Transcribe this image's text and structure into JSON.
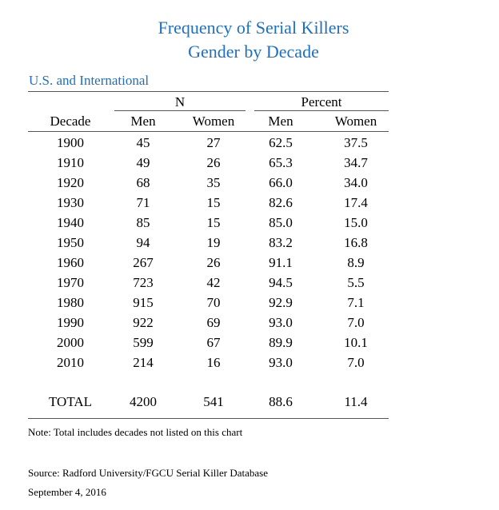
{
  "title_line1": "Frequency of Serial Killers",
  "title_line2": "Gender by Decade",
  "subtitle": "U.S. and International",
  "group_headers": {
    "n": "N",
    "percent": "Percent"
  },
  "columns": [
    "Decade",
    "Men",
    "Women",
    "Men",
    "Women"
  ],
  "rows": [
    [
      "1900",
      "45",
      "27",
      "62.5",
      "37.5"
    ],
    [
      "1910",
      "49",
      "26",
      "65.3",
      "34.7"
    ],
    [
      "1920",
      "68",
      "35",
      "66.0",
      "34.0"
    ],
    [
      "1930",
      "71",
      "15",
      "82.6",
      "17.4"
    ],
    [
      "1940",
      "85",
      "15",
      "85.0",
      "15.0"
    ],
    [
      "1950",
      "94",
      "19",
      "83.2",
      "16.8"
    ],
    [
      "1960",
      "267",
      "26",
      "91.1",
      "8.9"
    ],
    [
      "1970",
      "723",
      "42",
      "94.5",
      "5.5"
    ],
    [
      "1980",
      "915",
      "70",
      "92.9",
      "7.1"
    ],
    [
      "1990",
      "922",
      "69",
      "93.0",
      "7.0"
    ],
    [
      "2000",
      "599",
      "67",
      "89.9",
      "10.1"
    ],
    [
      "2010",
      "214",
      "16",
      "93.0",
      "7.0"
    ]
  ],
  "total_row": [
    "TOTAL",
    "4200",
    "541",
    "88.6",
    "11.4"
  ],
  "note": "Note: Total includes decades not listed on this chart",
  "source": "Source: Radford University/FGCU Serial Killer Database",
  "date": "September 4, 2016",
  "colors": {
    "title": "#1f6fbf",
    "rule": "#555555",
    "text": "#000000"
  }
}
